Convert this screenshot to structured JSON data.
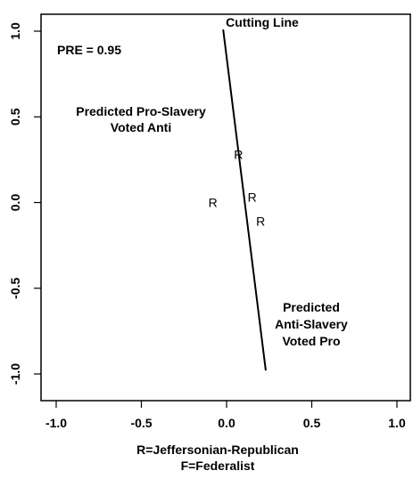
{
  "chart_data": {
    "type": "scatter",
    "title": "",
    "xlabel_lines": [
      "R=Jeffersonian-Republican",
      "F=Federalist"
    ],
    "ylabel": "",
    "xlim": [
      -1.0,
      1.0
    ],
    "ylim": [
      -1.0,
      1.0
    ],
    "x_ticks": [
      -1.0,
      -0.5,
      0.0,
      0.5,
      1.0
    ],
    "x_tick_labels": [
      "-1.0",
      "-0.5",
      "0.0",
      "0.5",
      "1.0"
    ],
    "y_ticks": [
      -1.0,
      -0.5,
      0.0,
      0.5,
      1.0
    ],
    "y_tick_labels": [
      "-1.0",
      "-0.5",
      "0.0",
      "0.5",
      "1.0"
    ],
    "grid": false,
    "points": [
      {
        "x": 0.07,
        "y": 0.28,
        "label": "R"
      },
      {
        "x": -0.08,
        "y": 0.0,
        "label": "R"
      },
      {
        "x": 0.15,
        "y": 0.03,
        "label": "R"
      },
      {
        "x": 0.2,
        "y": -0.11,
        "label": "R"
      }
    ],
    "cutting_line": {
      "x": [
        -0.02,
        0.23
      ],
      "y": [
        1.01,
        -0.98
      ]
    },
    "annotations": {
      "pre": "PRE = 0.95",
      "cutting_line_label": "Cutting Line",
      "pro_slavery_lines": [
        "Predicted Pro-Slavery",
        "Voted Anti"
      ],
      "anti_slavery_lines": [
        "Predicted",
        "Anti-Slavery",
        "Voted Pro"
      ]
    }
  }
}
